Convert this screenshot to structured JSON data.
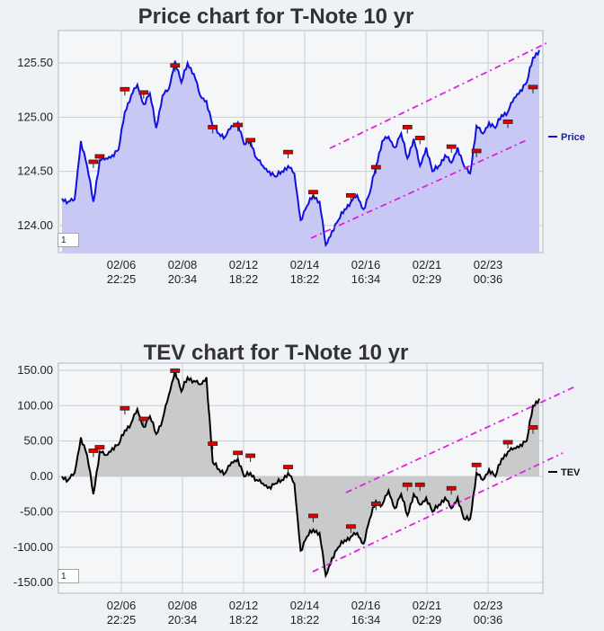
{
  "chart_data": [
    {
      "type": "area",
      "title": "Price chart for T-Note 10 yr",
      "legend": "Price",
      "legend_position": "right",
      "grid": true,
      "ylim": [
        123.75,
        125.8
      ],
      "y_ticks": [
        "125.50",
        "125.00",
        "124.50",
        "124.00"
      ],
      "y_tick_values": [
        125.5,
        125.0,
        124.5,
        124.0
      ],
      "x_ticks": [
        {
          "date": "02/06",
          "time": "22:25"
        },
        {
          "date": "02/08",
          "time": "20:34"
        },
        {
          "date": "02/12",
          "time": "18:22"
        },
        {
          "date": "02/14",
          "time": "18:22"
        },
        {
          "date": "02/16",
          "time": "16:34"
        },
        {
          "date": "02/21",
          "time": "02:29"
        },
        {
          "date": "02/23",
          "time": "00:36"
        }
      ],
      "zoom_value": "1",
      "colors": {
        "line": "#1010e0",
        "fill": "#c8c8f5",
        "trend": "#e020e0",
        "marker": "#e00000"
      },
      "series": [
        {
          "values": [
            124.25,
            124.22,
            124.24,
            124.78,
            124.55,
            124.22,
            124.6,
            124.62,
            124.65,
            124.7,
            125.05,
            125.2,
            125.3,
            125.12,
            125.22,
            124.9,
            125.2,
            125.26,
            125.52,
            125.32,
            125.5,
            125.4,
            125.2,
            125.15,
            124.92,
            124.85,
            124.82,
            124.92,
            124.95,
            124.75,
            124.78,
            124.62,
            124.55,
            124.5,
            124.45,
            124.5,
            124.55,
            124.48,
            124.05,
            124.18,
            124.28,
            124.22,
            123.82,
            123.95,
            124.05,
            124.15,
            124.22,
            124.28,
            124.15,
            124.3,
            124.55,
            124.78,
            124.82,
            124.72,
            124.85,
            124.62,
            124.8,
            124.55,
            124.72,
            124.5,
            124.55,
            124.65,
            124.58,
            124.72,
            124.55,
            124.48,
            124.92,
            124.85,
            124.95,
            124.9,
            125.02,
            125.05,
            125.18,
            125.25,
            125.32,
            125.55,
            125.62
          ]
        }
      ],
      "event_markers": [
        124.58,
        124.63,
        125.25,
        125.22,
        125.47,
        124.9,
        124.92,
        124.78,
        124.67,
        124.3,
        124.27,
        124.53,
        124.9,
        124.8,
        124.72,
        124.68,
        124.95,
        125.27
      ]
    },
    {
      "type": "area",
      "title": "TEV chart for T-Note 10 yr",
      "legend": "TEV",
      "legend_position": "right",
      "grid": true,
      "ylim": [
        -165,
        160
      ],
      "y_ticks": [
        "150.00",
        "100.00",
        "50.00",
        "0.00",
        "-50.00",
        "-100.00",
        "-150.00"
      ],
      "y_tick_values": [
        150,
        100,
        50,
        0,
        -50,
        -100,
        -150
      ],
      "x_ticks": [
        {
          "date": "02/06",
          "time": "22:25"
        },
        {
          "date": "02/08",
          "time": "20:34"
        },
        {
          "date": "02/12",
          "time": "18:22"
        },
        {
          "date": "02/14",
          "time": "18:22"
        },
        {
          "date": "02/16",
          "time": "16:34"
        },
        {
          "date": "02/21",
          "time": "02:29"
        },
        {
          "date": "02/23",
          "time": "00:36"
        }
      ],
      "zoom_value": "1",
      "colors": {
        "line": "#000000",
        "fill": "#c8cacc",
        "trend": "#e020e0",
        "marker": "#e00000"
      },
      "series": [
        {
          "values": [
            0,
            -5,
            5,
            55,
            30,
            -25,
            35,
            30,
            40,
            45,
            65,
            75,
            95,
            70,
            85,
            60,
            80,
            115,
            150,
            120,
            140,
            135,
            130,
            140,
            20,
            10,
            5,
            20,
            25,
            0,
            5,
            -5,
            -10,
            -15,
            -10,
            -5,
            5,
            -10,
            -105,
            -85,
            -75,
            -80,
            -140,
            -115,
            -100,
            -90,
            -85,
            -80,
            -95,
            -60,
            -35,
            -40,
            -20,
            -45,
            -25,
            -55,
            -25,
            -40,
            -30,
            -50,
            -40,
            -30,
            -45,
            -30,
            -60,
            -60,
            5,
            -5,
            10,
            0,
            25,
            35,
            40,
            45,
            50,
            100,
            110
          ]
        }
      ],
      "event_markers": [
        35,
        40,
        95,
        80,
        148,
        45,
        32,
        28,
        12,
        -57,
        -72,
        -40,
        -13,
        -13,
        -18,
        15,
        47,
        68
      ]
    }
  ]
}
